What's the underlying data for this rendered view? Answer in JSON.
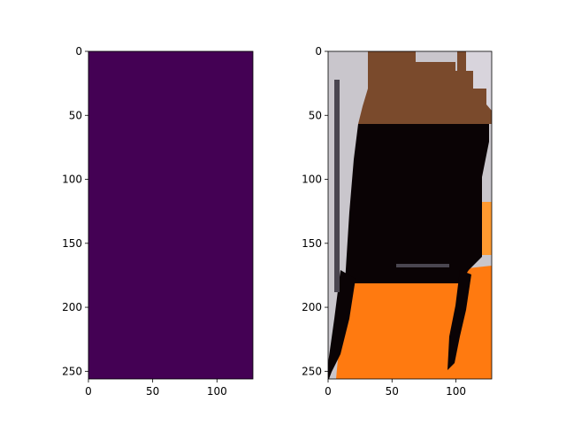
{
  "chart_data": [
    {
      "type": "heatmap",
      "title": "",
      "xlabel": "",
      "ylabel": "",
      "image_size": [
        128,
        256
      ],
      "xlim": [
        0,
        128
      ],
      "ylim": [
        256,
        0
      ],
      "x_ticks": [
        0,
        50,
        100
      ],
      "y_ticks": [
        0,
        50,
        100,
        150,
        200,
        250
      ],
      "x_tick_labels": [
        "0",
        "50",
        "100"
      ],
      "y_tick_labels": [
        "0",
        "50",
        "100",
        "150",
        "200",
        "250"
      ],
      "colormap": "viridis",
      "uniform_color": "#440154",
      "grid": false,
      "legend": "none"
    },
    {
      "type": "heatmap",
      "title": "",
      "xlabel": "",
      "ylabel": "",
      "image_size": [
        128,
        256
      ],
      "xlim": [
        0,
        128
      ],
      "ylim": [
        256,
        0
      ],
      "x_ticks": [
        0,
        50,
        100
      ],
      "y_ticks": [
        0,
        50,
        100,
        150,
        200,
        250
      ],
      "x_tick_labels": [
        "0",
        "50",
        "100"
      ],
      "y_tick_labels": [
        "0",
        "50",
        "100",
        "150",
        "200",
        "250"
      ],
      "content": "rgb photo",
      "colors": {
        "wall": "#c9c6cc",
        "wall_right": "#d8d4dc",
        "tabletop": "#7a4a2c",
        "shadow": "#0a0305",
        "floor": "#ff7a10",
        "floor_light": "#ff9a30",
        "edge": "#4a4650"
      },
      "grid": false,
      "legend": "none"
    }
  ]
}
